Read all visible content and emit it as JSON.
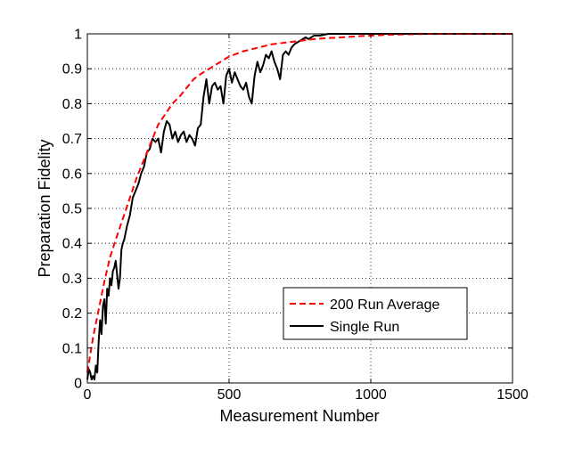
{
  "chart_data": {
    "type": "line",
    "title": "",
    "xlabel": "Measurement Number",
    "ylabel": "Preparation Fidelity",
    "xlim": [
      0,
      1500
    ],
    "ylim": [
      0,
      1
    ],
    "xticks": [
      0,
      500,
      1000,
      1500
    ],
    "xtick_labels": [
      "0",
      "500",
      "1000",
      "1500"
    ],
    "yticks": [
      0,
      0.1,
      0.2,
      0.3,
      0.4,
      0.5,
      0.6,
      0.7,
      0.8,
      0.9,
      1
    ],
    "ytick_labels": [
      "0",
      "0.1",
      "0.2",
      "0.3",
      "0.4",
      "0.5",
      "0.6",
      "0.7",
      "0.8",
      "0.9",
      "1"
    ],
    "grid": true,
    "legend_position": "bottom-right",
    "series": [
      {
        "name": "200 Run Average",
        "color": "#ff0000",
        "style": "dashed",
        "x": [
          0,
          10,
          20,
          40,
          60,
          80,
          100,
          125,
          150,
          175,
          200,
          225,
          250,
          275,
          300,
          325,
          350,
          375,
          400,
          450,
          500,
          550,
          600,
          650,
          700,
          750,
          800,
          850,
          900,
          950,
          1000,
          1050,
          1100,
          1150,
          1200,
          1300,
          1400,
          1500
        ],
        "y": [
          0.03,
          0.08,
          0.13,
          0.21,
          0.29,
          0.36,
          0.41,
          0.47,
          0.53,
          0.59,
          0.64,
          0.69,
          0.74,
          0.77,
          0.8,
          0.82,
          0.845,
          0.87,
          0.885,
          0.91,
          0.935,
          0.95,
          0.96,
          0.97,
          0.975,
          0.98,
          0.985,
          0.988,
          0.99,
          0.993,
          0.995,
          0.997,
          0.998,
          0.999,
          1.0,
          1.0,
          1.0,
          1.0
        ]
      },
      {
        "name": "Single Run",
        "color": "#000000",
        "style": "solid",
        "x": [
          0,
          5,
          10,
          15,
          20,
          25,
          30,
          35,
          40,
          45,
          50,
          55,
          60,
          65,
          70,
          75,
          80,
          85,
          90,
          95,
          100,
          105,
          110,
          115,
          120,
          125,
          130,
          140,
          150,
          160,
          170,
          180,
          190,
          200,
          210,
          220,
          230,
          240,
          250,
          260,
          270,
          280,
          290,
          300,
          310,
          320,
          330,
          340,
          350,
          360,
          370,
          380,
          390,
          400,
          410,
          420,
          430,
          440,
          450,
          460,
          470,
          480,
          490,
          500,
          510,
          520,
          530,
          540,
          550,
          560,
          570,
          580,
          590,
          600,
          610,
          620,
          630,
          640,
          650,
          660,
          670,
          680,
          690,
          700,
          710,
          720,
          730,
          740,
          750,
          760,
          770,
          780,
          790,
          800,
          820,
          850,
          900,
          1000,
          1500
        ],
        "y": [
          0.01,
          0.04,
          0.03,
          0.01,
          0.02,
          0.01,
          0.05,
          0.03,
          0.12,
          0.18,
          0.14,
          0.22,
          0.24,
          0.17,
          0.27,
          0.25,
          0.3,
          0.28,
          0.32,
          0.33,
          0.35,
          0.31,
          0.27,
          0.3,
          0.38,
          0.4,
          0.41,
          0.45,
          0.48,
          0.53,
          0.55,
          0.57,
          0.6,
          0.62,
          0.66,
          0.67,
          0.7,
          0.69,
          0.7,
          0.66,
          0.72,
          0.75,
          0.74,
          0.7,
          0.72,
          0.69,
          0.71,
          0.72,
          0.69,
          0.71,
          0.7,
          0.68,
          0.73,
          0.74,
          0.82,
          0.87,
          0.8,
          0.85,
          0.86,
          0.84,
          0.85,
          0.8,
          0.88,
          0.9,
          0.86,
          0.89,
          0.87,
          0.85,
          0.84,
          0.86,
          0.82,
          0.8,
          0.88,
          0.92,
          0.89,
          0.91,
          0.94,
          0.93,
          0.95,
          0.92,
          0.9,
          0.87,
          0.94,
          0.95,
          0.94,
          0.96,
          0.97,
          0.975,
          0.98,
          0.985,
          0.99,
          0.985,
          0.99,
          0.995,
          0.995,
          1.0,
          1.0,
          1.0,
          1.0
        ]
      }
    ]
  }
}
